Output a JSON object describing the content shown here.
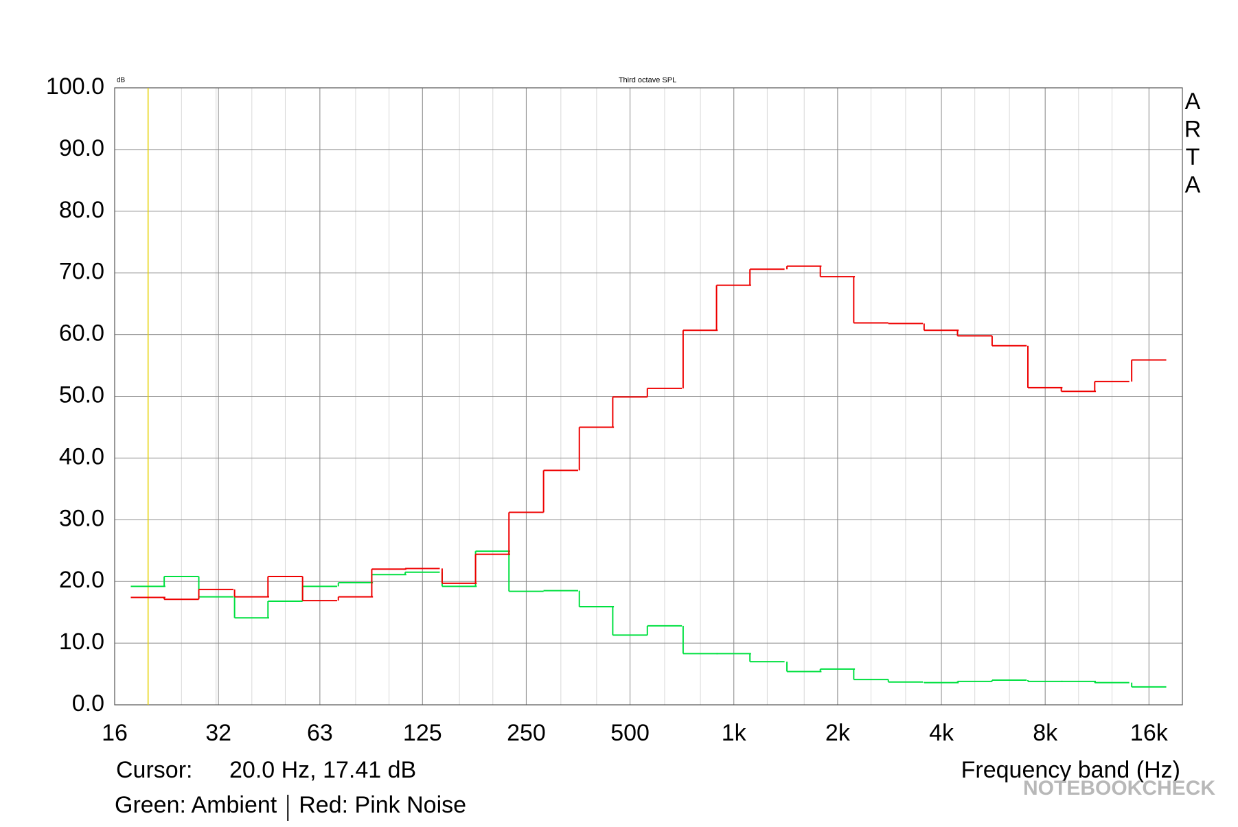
{
  "chart_data": {
    "type": "step",
    "title": "Third octave SPL",
    "y_unit": "dB",
    "watermark": "ARTA",
    "x_label": "Frequency band (Hz)",
    "cursor_label": "Cursor:",
    "cursor_text": "20.0 Hz, 17.41 dB",
    "cursor_x": 20,
    "cursor_color": "#e6d200",
    "brand": "NOTEBOOKCHECK",
    "log_x": true,
    "grid": true,
    "xlim": [
      16,
      20000
    ],
    "xticks": [
      16,
      32,
      63,
      125,
      250,
      500,
      {
        "value": 1000,
        "label": "1k"
      },
      {
        "value": 2000,
        "label": "2k"
      },
      {
        "value": 4000,
        "label": "4k"
      },
      {
        "value": 8000,
        "label": "8k"
      },
      {
        "value": 16000,
        "label": "16k"
      }
    ],
    "ylim": [
      0,
      100
    ],
    "yticks": [
      {
        "value": 0,
        "label": "0.0"
      },
      {
        "value": 10,
        "label": "10.0"
      },
      {
        "value": 20,
        "label": "20.0"
      },
      {
        "value": 30,
        "label": "30.0"
      },
      {
        "value": 40,
        "label": "40.0"
      },
      {
        "value": 50,
        "label": "50.0"
      },
      {
        "value": 60,
        "label": "60.0"
      },
      {
        "value": 70,
        "label": "70.0"
      },
      {
        "value": 80,
        "label": "80.0"
      },
      {
        "value": 90,
        "label": "90.0"
      },
      {
        "value": 100,
        "label": "100.0"
      }
    ],
    "x": [
      20,
      25,
      31.5,
      40,
      50,
      63,
      80,
      100,
      125,
      160,
      200,
      250,
      315,
      400,
      500,
      630,
      800,
      1000,
      1250,
      1600,
      2000,
      2500,
      3150,
      4000,
      5000,
      6300,
      8000,
      10000,
      12500,
      16000
    ],
    "series": [
      {
        "name": "Green: Ambient",
        "color": "#00e040",
        "values": [
          19.2,
          20.8,
          17.5,
          14.1,
          16.8,
          19.2,
          19.8,
          21.1,
          21.5,
          19.2,
          24.9,
          18.4,
          18.5,
          15.9,
          11.3,
          12.8,
          8.3,
          8.3,
          7.0,
          5.4,
          5.8,
          4.1,
          3.7,
          3.6,
          3.8,
          4.0,
          3.8,
          3.8,
          3.6,
          2.9
        ]
      },
      {
        "name": "Red: Pink Noise",
        "color": "#ee0000",
        "values": [
          17.41,
          17.1,
          18.7,
          17.5,
          20.8,
          16.9,
          17.5,
          22.0,
          22.1,
          19.7,
          24.4,
          31.2,
          38.0,
          45.0,
          49.9,
          51.3,
          60.7,
          68.0,
          70.6,
          71.1,
          69.4,
          61.9,
          61.8,
          60.7,
          59.8,
          58.2,
          51.4,
          50.8,
          52.4,
          55.9
        ]
      }
    ]
  }
}
